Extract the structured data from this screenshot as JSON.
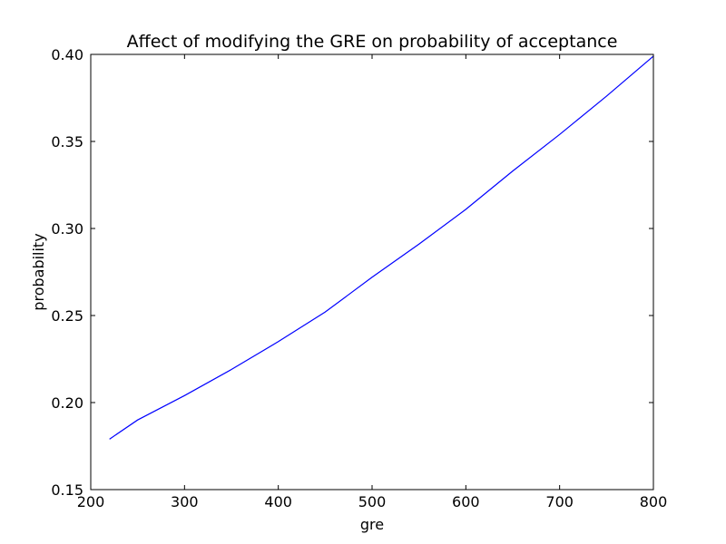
{
  "chart_data": {
    "type": "line",
    "title": "Affect of modifying the GRE on probability of acceptance",
    "xlabel": "gre",
    "ylabel": "probability",
    "xlim": [
      200,
      800
    ],
    "ylim": [
      0.15,
      0.4
    ],
    "xticks": [
      "200",
      "300",
      "400",
      "500",
      "600",
      "700",
      "800"
    ],
    "yticks": [
      "0.15",
      "0.20",
      "0.25",
      "0.30",
      "0.35",
      "0.40"
    ],
    "grid": false,
    "series": [
      {
        "color": "#0000ff",
        "x": [
          220,
          250,
          300,
          350,
          400,
          450,
          500,
          550,
          600,
          650,
          700,
          750,
          800
        ],
        "y": [
          0.179,
          0.19,
          0.204,
          0.219,
          0.235,
          0.252,
          0.272,
          0.291,
          0.311,
          0.333,
          0.354,
          0.376,
          0.399
        ]
      }
    ]
  }
}
